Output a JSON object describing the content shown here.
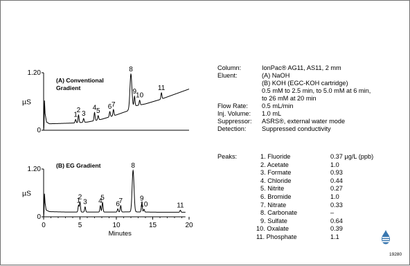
{
  "chart_data": [
    {
      "type": "line",
      "title": "(A) Conventional Gradient",
      "title_lines": [
        "(A) Conventional",
        "Gradient"
      ],
      "xlabel": "",
      "ylabel": "µS",
      "xlim": [
        0,
        20
      ],
      "ylim": [
        0,
        1.2
      ],
      "yticks": [
        "0",
        "1.20"
      ],
      "baseline": [
        [
          0.0,
          0.0
        ],
        [
          0.05,
          0.08
        ],
        [
          0.12,
          0.62
        ],
        [
          0.2,
          0.35
        ],
        [
          0.4,
          0.17
        ],
        [
          0.8,
          0.135
        ],
        [
          2.0,
          0.14
        ],
        [
          4.0,
          0.15
        ],
        [
          6.0,
          0.17
        ],
        [
          8.0,
          0.23
        ],
        [
          10.0,
          0.32
        ],
        [
          11.5,
          0.4
        ],
        [
          12.2,
          0.5
        ],
        [
          13.0,
          0.52
        ],
        [
          14.0,
          0.55
        ],
        [
          16.0,
          0.64
        ],
        [
          18.0,
          0.75
        ],
        [
          20.0,
          0.86
        ]
      ],
      "peaks": [
        {
          "label": "1",
          "x": 4.4,
          "height": 0.07
        },
        {
          "label": "2",
          "x": 4.8,
          "height": 0.16
        },
        {
          "label": "3",
          "x": 5.5,
          "height": 0.08
        },
        {
          "label": "4",
          "x": 7.0,
          "height": 0.17
        },
        {
          "label": "5",
          "x": 7.5,
          "height": 0.09
        },
        {
          "label": "6",
          "x": 9.1,
          "height": 0.11
        },
        {
          "label": "7",
          "x": 9.6,
          "height": 0.13
        },
        {
          "label": "8",
          "x": 12.0,
          "height": 0.7
        },
        {
          "label": "9",
          "x": 12.5,
          "height": 0.2
        },
        {
          "label": "10",
          "x": 13.2,
          "height": 0.1
        },
        {
          "label": "11",
          "x": 16.2,
          "height": 0.13
        }
      ]
    },
    {
      "type": "line",
      "title": "(B) EG Gradient",
      "title_lines": [
        "(B) EG Gradient"
      ],
      "xlabel": "Minutes",
      "ylabel": "µS",
      "xlim": [
        0,
        20
      ],
      "ylim": [
        0,
        1.2
      ],
      "yticks": [
        "0",
        "1.20"
      ],
      "xticks": [
        "0",
        "5",
        "10",
        "15",
        "20"
      ],
      "baseline": [
        [
          0.0,
          0.0
        ],
        [
          0.05,
          0.1
        ],
        [
          0.12,
          0.58
        ],
        [
          0.2,
          0.35
        ],
        [
          0.35,
          0.17
        ],
        [
          0.8,
          0.13
        ],
        [
          3.0,
          0.12
        ],
        [
          6.0,
          0.12
        ],
        [
          10.0,
          0.12
        ],
        [
          12.0,
          0.125
        ],
        [
          14.0,
          0.12
        ],
        [
          16.0,
          0.115
        ],
        [
          19.5,
          0.115
        ]
      ],
      "peaks": [
        {
          "label": "1",
          "x": 4.8,
          "height": 0.17
        },
        {
          "label": "2",
          "x": 5.0,
          "height": 0.25
        },
        {
          "label": "3",
          "x": 5.7,
          "height": 0.13
        },
        {
          "label": "4",
          "x": 7.8,
          "height": 0.16
        },
        {
          "label": "5",
          "x": 8.1,
          "height": 0.24
        },
        {
          "label": "6",
          "x": 10.2,
          "height": 0.08
        },
        {
          "label": "7",
          "x": 10.6,
          "height": 0.16
        },
        {
          "label": "8",
          "x": 12.3,
          "height": 1.04
        },
        {
          "label": "9",
          "x": 13.5,
          "height": 0.22
        },
        {
          "label": "10",
          "x": 13.8,
          "height": 0.07
        },
        {
          "label": "11",
          "x": 18.8,
          "height": 0.05
        }
      ]
    }
  ],
  "conditions": [
    {
      "key": "Column:",
      "value": "IonPac® AG11, AS11, 2 mm"
    },
    {
      "key": "Eluent:",
      "value": "(A) NaOH"
    },
    {
      "key": "",
      "value": "(B) KOH (EGC-KOH cartridge)"
    },
    {
      "key": "",
      "value": "0.5 mM to 2.5 min, to 5.0 mM at 6 min,"
    },
    {
      "key": "",
      "value": "to 26 mM at 20 min"
    },
    {
      "key": "Flow Rate:",
      "value": "0.5 mL/min"
    },
    {
      "key": "Inj. Volume:",
      "value": "1.0 mL"
    },
    {
      "key": "Suppressor:",
      "value": "ASRS®, external water mode"
    },
    {
      "key": "Detection:",
      "value": "Suppressed conductivity"
    }
  ],
  "peaks_label": "Peaks:",
  "peaks_table": [
    {
      "name": "1. Fluoride",
      "conc": "0.37 µg/L (ppb)"
    },
    {
      "name": "2. Acetate",
      "conc": "1.0"
    },
    {
      "name": "3. Formate",
      "conc": "0.93"
    },
    {
      "name": "4. Chloride",
      "conc": "0.44"
    },
    {
      "name": "5. Nitrite",
      "conc": "0.27"
    },
    {
      "name": "6. Bromide",
      "conc": "1.0"
    },
    {
      "name": "7. Nitrate",
      "conc": "0.33"
    },
    {
      "name": "8. Carbonate",
      "conc": "–"
    },
    {
      "name": "9. Sulfate",
      "conc": "0.64"
    },
    {
      "name": "10. Oxalate",
      "conc": "0.39"
    },
    {
      "name": "11. Phosphate",
      "conc": "1.1"
    }
  ],
  "figure_code": "19280",
  "colors": {
    "trace": "#000000",
    "background": "#ffffff",
    "frame": "#707070",
    "logo": "#3a78b0"
  }
}
